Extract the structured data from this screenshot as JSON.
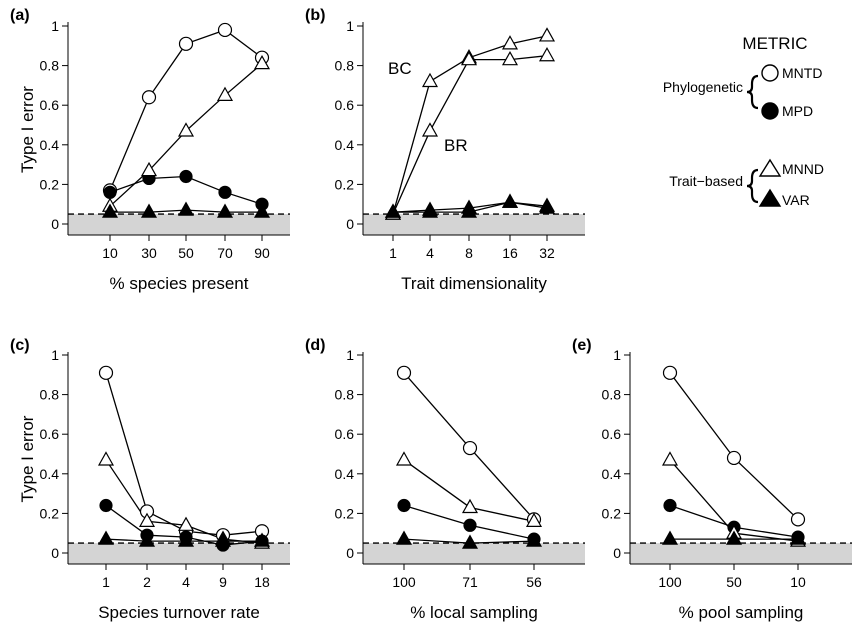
{
  "y_axis_label": "Type I error",
  "legend": {
    "title": "METRIC",
    "groups": [
      {
        "label": "Phylogenetic",
        "items": [
          "MNTD",
          "MPD"
        ]
      },
      {
        "label": "Trait−based",
        "items": [
          "MNND",
          "VAR"
        ]
      }
    ]
  },
  "chart_data": [
    {
      "type": "line",
      "panel": "(a)",
      "xlabel": "% species present",
      "ylabel": "Type I error",
      "categories": [
        "10",
        "30",
        "50",
        "70",
        "90"
      ],
      "ylim": [
        0,
        1.05
      ],
      "yticks": [
        "0",
        "0.2",
        "0.4",
        "0.6",
        "0.8",
        "1"
      ],
      "reference_line": 0.05,
      "shaded_below": 0.05,
      "series": [
        {
          "name": "MNTD",
          "marker": "open-circle",
          "values": [
            0.17,
            0.64,
            0.91,
            0.98,
            0.84
          ]
        },
        {
          "name": "MPD",
          "marker": "filled-circle",
          "values": [
            0.16,
            0.23,
            0.24,
            0.16,
            0.1
          ]
        },
        {
          "name": "MNND",
          "marker": "open-triangle",
          "values": [
            0.09,
            0.27,
            0.47,
            0.65,
            0.81
          ]
        },
        {
          "name": "VAR",
          "marker": "filled-triangle",
          "values": [
            0.06,
            0.06,
            0.07,
            0.06,
            0.06
          ]
        }
      ]
    },
    {
      "type": "line",
      "panel": "(b)",
      "xlabel": "Trait dimensionality",
      "categories": [
        "1",
        "4",
        "8",
        "16",
        "32"
      ],
      "ylim": [
        0,
        1.05
      ],
      "yticks": [
        "0",
        "0.2",
        "0.4",
        "0.6",
        "0.8",
        "1"
      ],
      "reference_line": 0.05,
      "shaded_below": 0.05,
      "annotations": [
        "BC",
        "BR"
      ],
      "series": [
        {
          "name": "MNND BC",
          "marker": "open-triangle",
          "values": [
            0.05,
            0.72,
            0.84,
            0.91,
            0.95
          ]
        },
        {
          "name": "MNND BR",
          "marker": "open-triangle",
          "values": [
            0.05,
            0.47,
            0.83,
            0.83,
            0.85
          ]
        },
        {
          "name": "VAR BC",
          "marker": "filled-triangle",
          "values": [
            0.06,
            0.07,
            0.08,
            0.11,
            0.09
          ]
        },
        {
          "name": "VAR BR",
          "marker": "filled-triangle",
          "values": [
            0.06,
            0.06,
            0.06,
            0.11,
            0.08
          ]
        }
      ]
    },
    {
      "type": "line",
      "panel": "(c)",
      "xlabel": "Species turnover rate",
      "ylabel": "Type I error",
      "categories": [
        "1",
        "2",
        "4",
        "9",
        "18"
      ],
      "ylim": [
        0,
        1.05
      ],
      "yticks": [
        "0",
        "0.2",
        "0.4",
        "0.6",
        "0.8",
        "1"
      ],
      "reference_line": 0.05,
      "shaded_below": 0.05,
      "series": [
        {
          "name": "MNTD",
          "marker": "open-circle",
          "values": [
            0.91,
            0.21,
            0.11,
            0.09,
            0.11
          ]
        },
        {
          "name": "MPD",
          "marker": "filled-circle",
          "values": [
            0.24,
            0.09,
            0.08,
            0.04,
            0.06
          ]
        },
        {
          "name": "MNND",
          "marker": "open-triangle",
          "values": [
            0.47,
            0.16,
            0.14,
            0.07,
            0.05
          ]
        },
        {
          "name": "VAR",
          "marker": "filled-triangle",
          "values": [
            0.07,
            0.06,
            0.06,
            0.06,
            0.06
          ]
        }
      ]
    },
    {
      "type": "line",
      "panel": "(d)",
      "xlabel": "% local sampling",
      "categories": [
        "100",
        "71",
        "56"
      ],
      "ylim": [
        0,
        1.05
      ],
      "yticks": [
        "0",
        "0.2",
        "0.4",
        "0.6",
        "0.8",
        "1"
      ],
      "reference_line": 0.05,
      "shaded_below": 0.05,
      "series": [
        {
          "name": "MNTD",
          "marker": "open-circle",
          "values": [
            0.91,
            0.53,
            0.17
          ]
        },
        {
          "name": "MPD",
          "marker": "filled-circle",
          "values": [
            0.24,
            0.14,
            0.07
          ]
        },
        {
          "name": "MNND",
          "marker": "open-triangle",
          "values": [
            0.47,
            0.23,
            0.16
          ]
        },
        {
          "name": "VAR",
          "marker": "filled-triangle",
          "values": [
            0.07,
            0.05,
            0.06
          ]
        }
      ]
    },
    {
      "type": "line",
      "panel": "(e)",
      "xlabel": "% pool sampling",
      "categories": [
        "100",
        "50",
        "10"
      ],
      "ylim": [
        0,
        1.05
      ],
      "yticks": [
        "0",
        "0.2",
        "0.4",
        "0.6",
        "0.8",
        "1"
      ],
      "reference_line": 0.05,
      "shaded_below": 0.05,
      "series": [
        {
          "name": "MNTD",
          "marker": "open-circle",
          "values": [
            0.91,
            0.48,
            0.17
          ]
        },
        {
          "name": "MPD",
          "marker": "filled-circle",
          "values": [
            0.24,
            0.13,
            0.08
          ]
        },
        {
          "name": "MNND",
          "marker": "open-triangle",
          "values": [
            0.47,
            0.1,
            0.06
          ]
        },
        {
          "name": "VAR",
          "marker": "filled-triangle",
          "values": [
            0.07,
            0.07,
            0.07
          ]
        }
      ]
    }
  ]
}
